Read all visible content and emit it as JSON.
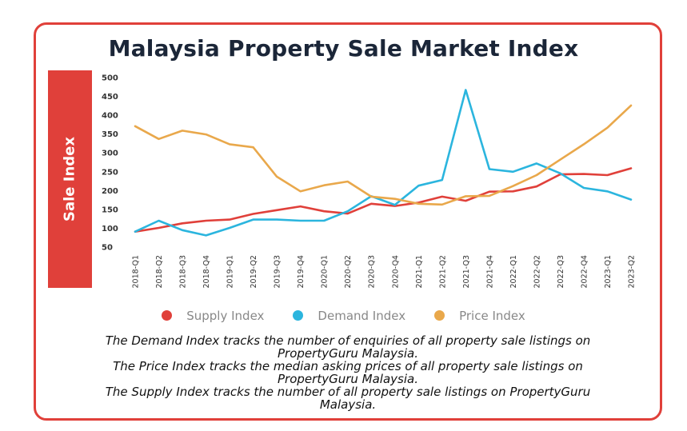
{
  "chart_data": {
    "type": "line",
    "title": "Malaysia Property Sale Market Index",
    "ylabel": "Sale Index",
    "xlabel": "",
    "ylim": [
      50,
      500
    ],
    "yticks": [
      500,
      450,
      400,
      350,
      300,
      250,
      200,
      150,
      100,
      50
    ],
    "x": [
      "2018-Q1",
      "2018-Q2",
      "2018-Q3",
      "2018-Q4",
      "2019-Q1",
      "2019-Q2",
      "2019-Q3",
      "2019-Q4",
      "2020-Q1",
      "2020-Q2",
      "2020-Q3",
      "2020-Q4",
      "2021-Q1",
      "2021-Q2",
      "2021-Q3",
      "2021-Q4",
      "2022-Q1",
      "2022-Q2",
      "2022-Q3",
      "2022-Q4",
      "2023-Q1",
      "2023-Q2"
    ],
    "series": [
      {
        "name": "Supply Index",
        "color": "#e0403a",
        "values": [
          91,
          101,
          113,
          120,
          123,
          138,
          148,
          158,
          145,
          139,
          165,
          159,
          168,
          184,
          173,
          197,
          198,
          211,
          243,
          244,
          241,
          259
        ]
      },
      {
        "name": "Demand Index",
        "color": "#2bb5de",
        "values": [
          91,
          120,
          95,
          81,
          101,
          123,
          123,
          120,
          120,
          145,
          185,
          162,
          213,
          228,
          467,
          257,
          250,
          272,
          246,
          207,
          198,
          176
        ]
      },
      {
        "name": "Price Index",
        "color": "#e9a84b",
        "values": [
          371,
          337,
          359,
          349,
          323,
          315,
          237,
          198,
          214,
          224,
          184,
          178,
          165,
          163,
          185,
          186,
          212,
          241,
          282,
          323,
          367,
          426
        ]
      }
    ],
    "legend": "bottom",
    "grid": false
  },
  "notes": [
    "The Demand Index tracks the number of enquiries of all property sale listings on PropertyGuru Malaysia.",
    "The Price Index tracks the median asking prices of all property sale listings on PropertyGuru Malaysia.",
    "The Supply Index tracks the number of all property sale listings on PropertyGuru Malaysia."
  ]
}
